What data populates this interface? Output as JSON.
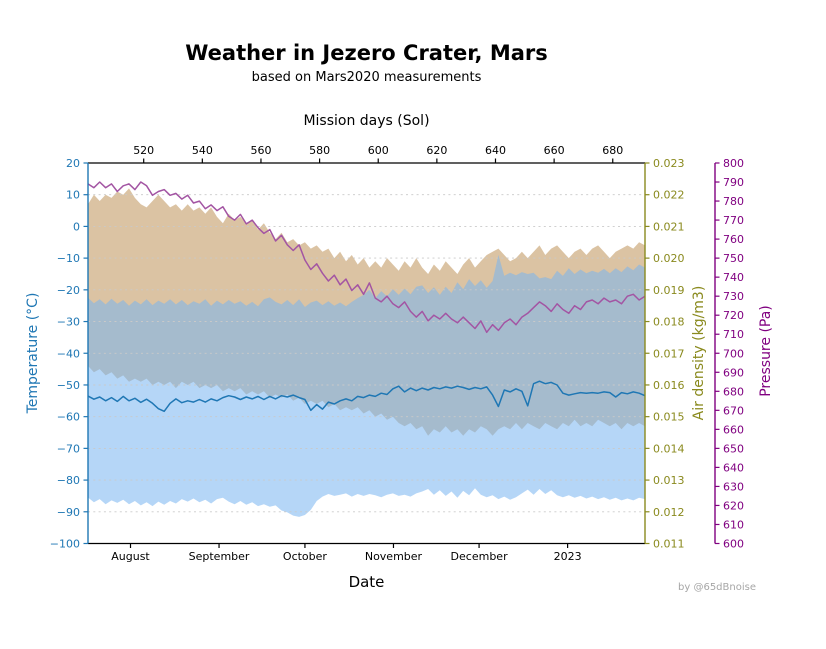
{
  "header": {
    "title": "Weather in Jezero Crater, Mars",
    "subtitle": "based on Mars2020 measurements"
  },
  "credit": "by @65dBnoise",
  "colors": {
    "background": "#ffffff",
    "grid": "#c9c9c9",
    "frame": "#000000",
    "temperature": "#1f77b4",
    "density": "#8a8a1e",
    "pressure_axis": "#800080",
    "pressure_line": "#a355a3",
    "temperature_line": "#1f77b4",
    "band_tan": "#d2b48c",
    "band_blue": "#78b4f0",
    "credit": "#a6a6a6"
  },
  "axes": {
    "top": {
      "label": "Mission days (Sol)",
      "ticks": [
        {
          "value": 520,
          "label": "520"
        },
        {
          "value": 540,
          "label": "540"
        },
        {
          "value": 560,
          "label": "560"
        },
        {
          "value": 580,
          "label": "580"
        },
        {
          "value": 600,
          "label": "600"
        },
        {
          "value": 620,
          "label": "620"
        },
        {
          "value": 640,
          "label": "640"
        },
        {
          "value": 660,
          "label": "660"
        },
        {
          "value": 680,
          "label": "680"
        }
      ]
    },
    "bottom": {
      "label": "Date",
      "ticks": [
        {
          "value": 515.5,
          "label": "August"
        },
        {
          "value": 545.7,
          "label": "September"
        },
        {
          "value": 575.0,
          "label": "October"
        },
        {
          "value": 605.2,
          "label": "November"
        },
        {
          "value": 634.4,
          "label": "December"
        },
        {
          "value": 664.6,
          "label": "2023"
        }
      ]
    },
    "left": {
      "label": "Temperature (°C)",
      "ticks": [
        {
          "value": 20,
          "label": "20"
        },
        {
          "value": 10,
          "label": "10"
        },
        {
          "value": 0,
          "label": "0"
        },
        {
          "value": -10,
          "label": "−10"
        },
        {
          "value": -20,
          "label": "−20"
        },
        {
          "value": -30,
          "label": "−30"
        },
        {
          "value": -40,
          "label": "−40"
        },
        {
          "value": -50,
          "label": "−50"
        },
        {
          "value": -60,
          "label": "−60"
        },
        {
          "value": -70,
          "label": "−70"
        },
        {
          "value": -80,
          "label": "−80"
        },
        {
          "value": -90,
          "label": "−90"
        },
        {
          "value": -100,
          "label": "−100"
        }
      ]
    },
    "right_density": {
      "label": "Air density (kg/m3)",
      "ticks": [
        {
          "value": 0.023,
          "label": "0.023"
        },
        {
          "value": 0.022,
          "label": "0.022"
        },
        {
          "value": 0.021,
          "label": "0.021"
        },
        {
          "value": 0.02,
          "label": "0.020"
        },
        {
          "value": 0.019,
          "label": "0.019"
        },
        {
          "value": 0.018,
          "label": "0.018"
        },
        {
          "value": 0.017,
          "label": "0.017"
        },
        {
          "value": 0.016,
          "label": "0.016"
        },
        {
          "value": 0.015,
          "label": "0.015"
        },
        {
          "value": 0.014,
          "label": "0.014"
        },
        {
          "value": 0.013,
          "label": "0.013"
        },
        {
          "value": 0.012,
          "label": "0.012"
        },
        {
          "value": 0.011,
          "label": "0.011"
        }
      ]
    },
    "right_pressure": {
      "label": "Pressure (Pa)",
      "ticks": [
        {
          "value": 800,
          "label": "800"
        },
        {
          "value": 790,
          "label": "790"
        },
        {
          "value": 780,
          "label": "780"
        },
        {
          "value": 770,
          "label": "770"
        },
        {
          "value": 760,
          "label": "760"
        },
        {
          "value": 750,
          "label": "750"
        },
        {
          "value": 740,
          "label": "740"
        },
        {
          "value": 730,
          "label": "730"
        },
        {
          "value": 720,
          "label": "720"
        },
        {
          "value": 710,
          "label": "710"
        },
        {
          "value": 700,
          "label": "700"
        },
        {
          "value": 690,
          "label": "690"
        },
        {
          "value": 680,
          "label": "680"
        },
        {
          "value": 670,
          "label": "670"
        },
        {
          "value": 660,
          "label": "660"
        },
        {
          "value": 650,
          "label": "650"
        },
        {
          "value": 640,
          "label": "640"
        },
        {
          "value": 630,
          "label": "630"
        },
        {
          "value": 620,
          "label": "620"
        },
        {
          "value": 610,
          "label": "610"
        },
        {
          "value": 600,
          "label": "600"
        }
      ]
    }
  },
  "chart_data": {
    "type": "area",
    "title": "Weather in Jezero Crater, Mars",
    "subtitle": "based on Mars2020 measurements",
    "x_top_label": "Mission days (Sol)",
    "x_bottom_label": "Date",
    "grid": "dashed horizontal every 10 °C",
    "legend_position": "none",
    "sol_start": 501,
    "sol_step": 2,
    "points": 96,
    "axes_lim": {
      "sol": [
        501,
        691
      ],
      "temperature": [
        -100,
        20
      ],
      "density": [
        0.011,
        0.023
      ],
      "pressure": [
        600,
        800
      ]
    },
    "series": [
      {
        "name": "air_density_min_max_band",
        "axis": "density",
        "role": "band",
        "color": "#d2b48c",
        "opacity": 0.8,
        "max": [
          0.0217,
          0.022,
          0.0218,
          0.022,
          0.0219,
          0.0221,
          0.022,
          0.0222,
          0.0219,
          0.0217,
          0.0216,
          0.0218,
          0.022,
          0.0218,
          0.0216,
          0.0217,
          0.0215,
          0.0217,
          0.0215,
          0.0216,
          0.0214,
          0.0216,
          0.0213,
          0.0211,
          0.0214,
          0.0212,
          0.0213,
          0.0211,
          0.0212,
          0.0209,
          0.0211,
          0.0208,
          0.0206,
          0.0208,
          0.0205,
          0.0206,
          0.0204,
          0.0205,
          0.0203,
          0.0204,
          0.0202,
          0.0203,
          0.02,
          0.0202,
          0.0199,
          0.0201,
          0.0198,
          0.02,
          0.0197,
          0.0199,
          0.0197,
          0.02,
          0.0198,
          0.0196,
          0.0199,
          0.0197,
          0.02,
          0.0197,
          0.0195,
          0.0198,
          0.0196,
          0.0199,
          0.0197,
          0.0195,
          0.0198,
          0.02,
          0.0197,
          0.0199,
          0.0201,
          0.0202,
          0.0203,
          0.0201,
          0.0199,
          0.02,
          0.0202,
          0.02,
          0.0202,
          0.0204,
          0.0201,
          0.0203,
          0.0204,
          0.0202,
          0.02,
          0.0202,
          0.0203,
          0.0201,
          0.0203,
          0.0204,
          0.0202,
          0.02,
          0.0202,
          0.0203,
          0.0204,
          0.0203,
          0.0205,
          0.0204
        ],
        "min": [
          0.0166,
          0.0164,
          0.0165,
          0.0163,
          0.0164,
          0.0162,
          0.0163,
          0.0161,
          0.0162,
          0.0161,
          0.0162,
          0.016,
          0.0161,
          0.016,
          0.0161,
          0.0159,
          0.0161,
          0.016,
          0.0161,
          0.0159,
          0.016,
          0.0159,
          0.016,
          0.0158,
          0.0159,
          0.0158,
          0.0159,
          0.0157,
          0.0158,
          0.0157,
          0.0158,
          0.0156,
          0.0157,
          0.0156,
          0.0157,
          0.0155,
          0.0156,
          0.0154,
          0.0155,
          0.0154,
          0.0155,
          0.0153,
          0.0154,
          0.0152,
          0.0153,
          0.0152,
          0.0153,
          0.0151,
          0.0152,
          0.015,
          0.0151,
          0.0149,
          0.015,
          0.0148,
          0.0147,
          0.0148,
          0.0146,
          0.0147,
          0.0144,
          0.0146,
          0.0145,
          0.0147,
          0.0145,
          0.0146,
          0.0144,
          0.0146,
          0.0145,
          0.0147,
          0.0146,
          0.0144,
          0.0146,
          0.0147,
          0.0146,
          0.0148,
          0.0146,
          0.0148,
          0.0147,
          0.0146,
          0.0148,
          0.0147,
          0.0146,
          0.0148,
          0.0147,
          0.0149,
          0.0147,
          0.0148,
          0.0147,
          0.0149,
          0.0148,
          0.0147,
          0.0148,
          0.0146,
          0.0148,
          0.0147,
          0.0148,
          0.0147
        ]
      },
      {
        "name": "temperature_min_max_band",
        "axis": "temperature",
        "role": "band",
        "color": "#78b4f0",
        "opacity": 0.55,
        "max": [
          -22.5,
          -24.2,
          -23,
          -24.6,
          -22.8,
          -24.4,
          -23.2,
          -25,
          -23.4,
          -24.6,
          -23,
          -24.8,
          -23.4,
          -24.4,
          -23,
          -24.6,
          -23.2,
          -24.8,
          -23.6,
          -24.4,
          -23,
          -25,
          -23.4,
          -24.6,
          -23.2,
          -24.4,
          -23.6,
          -25,
          -23.8,
          -25.2,
          -23,
          -22.4,
          -23.8,
          -24.6,
          -23.2,
          -24.8,
          -23,
          -25.4,
          -24,
          -23.4,
          -24.8,
          -23.6,
          -25,
          -24,
          -25.2,
          -23.8,
          -22.6,
          -21.6,
          -20,
          -22.6,
          -20.4,
          -22,
          -19.8,
          -21.6,
          -19.6,
          -21.4,
          -19,
          -18.6,
          -21,
          -19.2,
          -21.6,
          -19,
          -21,
          -17.6,
          -19.8,
          -16.6,
          -18.8,
          -17,
          -19.4,
          -17.2,
          -9,
          -15.6,
          -14.6,
          -15.4,
          -14.4,
          -15,
          -14.6,
          -16.4,
          -16,
          -16.6,
          -14,
          -15.6,
          -13.2,
          -15,
          -13.6,
          -14.8,
          -14,
          -14.6,
          -13.4,
          -14.8,
          -13.2,
          -14.4,
          -12.6,
          -13.8,
          -12,
          -13
        ],
        "min": [
          -85.5,
          -87,
          -86,
          -87.6,
          -86.4,
          -87.2,
          -86.2,
          -87.6,
          -86.6,
          -88,
          -87,
          -88.2,
          -86.8,
          -87.8,
          -86.6,
          -87.4,
          -86,
          -86.8,
          -85.8,
          -87,
          -86.2,
          -87.4,
          -86,
          -85.6,
          -86.8,
          -87.6,
          -86.6,
          -87.8,
          -87,
          -88.2,
          -87.6,
          -88.4,
          -88,
          -89.6,
          -90.2,
          -91.2,
          -91.6,
          -91,
          -89.4,
          -86.6,
          -85.2,
          -84.4,
          -85,
          -84.6,
          -84.2,
          -85.2,
          -84.4,
          -85,
          -84.4,
          -84.8,
          -85.4,
          -84.6,
          -84.2,
          -85,
          -84.6,
          -85.2,
          -84.2,
          -83.6,
          -82.8,
          -84.6,
          -83.2,
          -85,
          -83.6,
          -85.6,
          -83.4,
          -84.8,
          -82.6,
          -84.6,
          -85.4,
          -84.8,
          -86,
          -85.2,
          -86.2,
          -85.4,
          -84.2,
          -83,
          -84.6,
          -82.8,
          -84.4,
          -83.2,
          -84.8,
          -85.4,
          -84.8,
          -85.6,
          -85,
          -85.8,
          -85.2,
          -86,
          -85.4,
          -86.2,
          -85.6,
          -86.4,
          -85.8,
          -86.4,
          -85.6,
          -86
        ]
      },
      {
        "name": "pressure",
        "axis": "pressure",
        "role": "line",
        "color": "#a355a3",
        "width": 1.5,
        "values": [
          789,
          787,
          790,
          787,
          789,
          785,
          788,
          789,
          786,
          790,
          788,
          783,
          785,
          786,
          783,
          784,
          781,
          783,
          779,
          780,
          776,
          778,
          775,
          777,
          772,
          770,
          773,
          768,
          770,
          766,
          763,
          765,
          759,
          762,
          757,
          754,
          757,
          749,
          744,
          747,
          742,
          738,
          741,
          736,
          739,
          733,
          736,
          731,
          737,
          729,
          727,
          730,
          726,
          724,
          727,
          722,
          719,
          722,
          717,
          720,
          718,
          721,
          718,
          716,
          719,
          716,
          713,
          717,
          711,
          715,
          712,
          716,
          718,
          715,
          719,
          721,
          724,
          727,
          725,
          722,
          726,
          723,
          721,
          725,
          723,
          727,
          728,
          726,
          729,
          727,
          728,
          726,
          730,
          731,
          728,
          730
        ]
      },
      {
        "name": "temperature_mean",
        "axis": "temperature",
        "role": "line",
        "color": "#1f77b4",
        "width": 1.5,
        "values": [
          -53.5,
          -54.5,
          -53.8,
          -55,
          -54,
          -55.2,
          -53.6,
          -55,
          -54.2,
          -55.5,
          -54.5,
          -55.8,
          -57.5,
          -58.3,
          -55.8,
          -54.4,
          -55.6,
          -55,
          -55.4,
          -54.6,
          -55.4,
          -54.4,
          -55,
          -54,
          -53.4,
          -53.8,
          -54.6,
          -53.8,
          -54.4,
          -53.6,
          -54.6,
          -53.6,
          -54.4,
          -53.4,
          -53.8,
          -53.2,
          -54,
          -54.6,
          -58,
          -56.2,
          -57.6,
          -55.4,
          -56,
          -55,
          -54.4,
          -55,
          -53.6,
          -54,
          -53.2,
          -53.6,
          -52.6,
          -53,
          -51.2,
          -50.4,
          -52.2,
          -51,
          -51.8,
          -51,
          -51.6,
          -50.8,
          -51.2,
          -50.6,
          -51,
          -50.4,
          -50.8,
          -51.4,
          -50.8,
          -51.2,
          -50.6,
          -53.2,
          -56.8,
          -51.6,
          -52.2,
          -51.2,
          -52,
          -56.6,
          -49.6,
          -48.8,
          -49.6,
          -49.2,
          -50,
          -52.6,
          -53.2,
          -52.8,
          -52.4,
          -52.6,
          -52.4,
          -52.6,
          -52.2,
          -52.4,
          -53.8,
          -52.4,
          -52.8,
          -52.2,
          -52.6,
          -53.4
        ]
      }
    ]
  }
}
